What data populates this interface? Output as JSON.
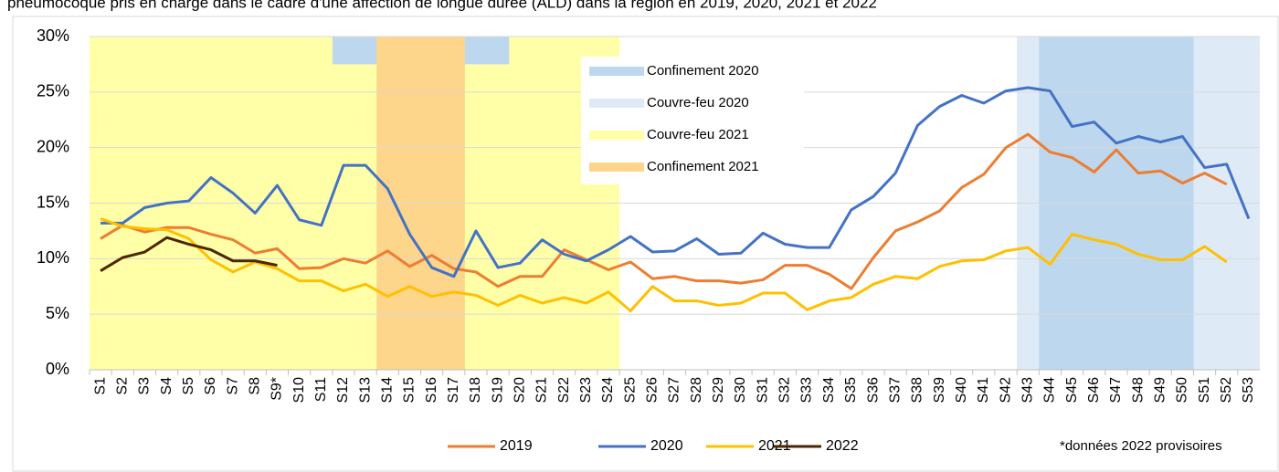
{
  "chart_data": {
    "type": "line",
    "title": "pneumocoque pris en charge dans le cadre d'une affection de longue durée (ALD) dans la région en 2019, 2020, 2021 et 2022",
    "footnote": "*données 2022 provisoires",
    "categories": [
      "S1",
      "S2",
      "S3",
      "S4",
      "S5",
      "S6",
      "S7",
      "S8",
      "S9*",
      "S10",
      "S11",
      "S12",
      "S13",
      "S14",
      "S15",
      "S16",
      "S17",
      "S18",
      "S19",
      "S20",
      "S21",
      "S22",
      "S23",
      "S24",
      "S25",
      "S26",
      "S27",
      "S28",
      "S29",
      "S30",
      "S31",
      "S32",
      "S33",
      "S34",
      "S35",
      "S36",
      "S37",
      "S38",
      "S39",
      "S40",
      "S41",
      "S42",
      "S43",
      "S44",
      "S45",
      "S46",
      "S47",
      "S48",
      "S49",
      "S50",
      "S51",
      "S52",
      "S53"
    ],
    "series": [
      {
        "name": "2019",
        "color": "#ed7d31",
        "values": [
          11.8,
          13.0,
          12.4,
          12.8,
          12.8,
          12.2,
          11.7,
          10.5,
          10.9,
          9.1,
          9.2,
          10.0,
          9.6,
          10.7,
          9.3,
          10.3,
          9.1,
          8.8,
          7.5,
          8.4,
          8.4,
          10.8,
          9.9,
          9.0,
          9.7,
          8.2,
          8.4,
          8.0,
          8.0,
          7.8,
          8.1,
          9.4,
          9.4,
          8.6,
          7.3,
          10.1,
          12.5,
          13.3,
          14.3,
          16.4,
          17.6,
          20.0,
          21.2,
          19.6,
          19.1,
          17.8,
          19.8,
          17.7,
          17.9,
          16.8,
          17.7,
          16.7,
          null
        ]
      },
      {
        "name": "2020",
        "color": "#4472c4",
        "values": [
          13.2,
          13.2,
          14.6,
          15.0,
          15.2,
          17.3,
          15.9,
          14.1,
          16.6,
          13.5,
          13.0,
          18.4,
          18.4,
          16.3,
          12.2,
          9.2,
          8.4,
          12.5,
          9.2,
          9.6,
          11.7,
          10.4,
          9.8,
          10.8,
          12.0,
          10.6,
          10.7,
          11.8,
          10.4,
          10.5,
          12.3,
          11.3,
          11.0,
          11.0,
          14.4,
          15.6,
          17.7,
          22.0,
          23.7,
          24.7,
          24.0,
          25.1,
          25.4,
          25.1,
          21.9,
          22.3,
          20.4,
          21.0,
          20.5,
          21.0,
          18.2,
          18.5,
          13.6
        ]
      },
      {
        "name": "2021",
        "color": "#ffc000",
        "values": [
          13.6,
          12.9,
          12.7,
          12.6,
          11.8,
          9.9,
          8.8,
          9.7,
          9.1,
          8.0,
          8.0,
          7.1,
          7.7,
          6.6,
          7.5,
          6.6,
          7.0,
          6.7,
          5.8,
          6.7,
          6.0,
          6.5,
          6.0,
          7.0,
          5.3,
          7.5,
          6.2,
          6.2,
          5.8,
          6.0,
          6.9,
          6.9,
          5.4,
          6.2,
          6.5,
          7.7,
          8.4,
          8.2,
          9.3,
          9.8,
          9.9,
          10.7,
          11.0,
          9.5,
          12.2,
          11.7,
          11.3,
          10.4,
          9.9,
          9.9,
          11.1,
          9.7,
          null
        ]
      },
      {
        "name": "2022",
        "color": "#4d2600",
        "values": [
          8.9,
          10.1,
          10.6,
          11.9,
          11.3,
          10.8,
          9.8,
          9.8,
          9.4,
          null,
          null,
          null,
          null,
          null,
          null,
          null,
          null,
          null,
          null,
          null,
          null,
          null,
          null,
          null,
          null,
          null,
          null,
          null,
          null,
          null,
          null,
          null,
          null,
          null,
          null,
          null,
          null,
          null,
          null,
          null,
          null,
          null,
          null,
          null,
          null,
          null,
          null,
          null,
          null,
          null,
          null,
          null,
          null
        ]
      }
    ],
    "bands": [
      {
        "name": "Confinement 2020",
        "color": "#bdd7ee",
        "spans": [
          {
            "from": "S12",
            "to": "S19",
            "y": [
              27.5,
              30
            ]
          },
          {
            "from": "S44",
            "to": "S50"
          }
        ]
      },
      {
        "name": "Couvre-feu 2020",
        "color": "#deebf7",
        "spans": [
          {
            "from": "S43",
            "to": "S53"
          }
        ]
      },
      {
        "name": "Couvre-feu 2021",
        "color": "#ffffa8",
        "spans": [
          {
            "from": "S1",
            "to": "S24"
          }
        ]
      },
      {
        "name": "Confinement 2021",
        "color": "#fdd58b",
        "spans": [
          {
            "from": "S14",
            "to": "S17"
          }
        ]
      }
    ],
    "ylim": [
      0,
      30
    ],
    "yticks": [
      {
        "value": 0,
        "label": "0%"
      },
      {
        "value": 5,
        "label": "5%"
      },
      {
        "value": 10,
        "label": "10%"
      },
      {
        "value": 15,
        "label": "15%"
      },
      {
        "value": 20,
        "label": "20%"
      },
      {
        "value": 25,
        "label": "25%"
      },
      {
        "value": 30,
        "label": "30%"
      }
    ],
    "grid": true
  }
}
